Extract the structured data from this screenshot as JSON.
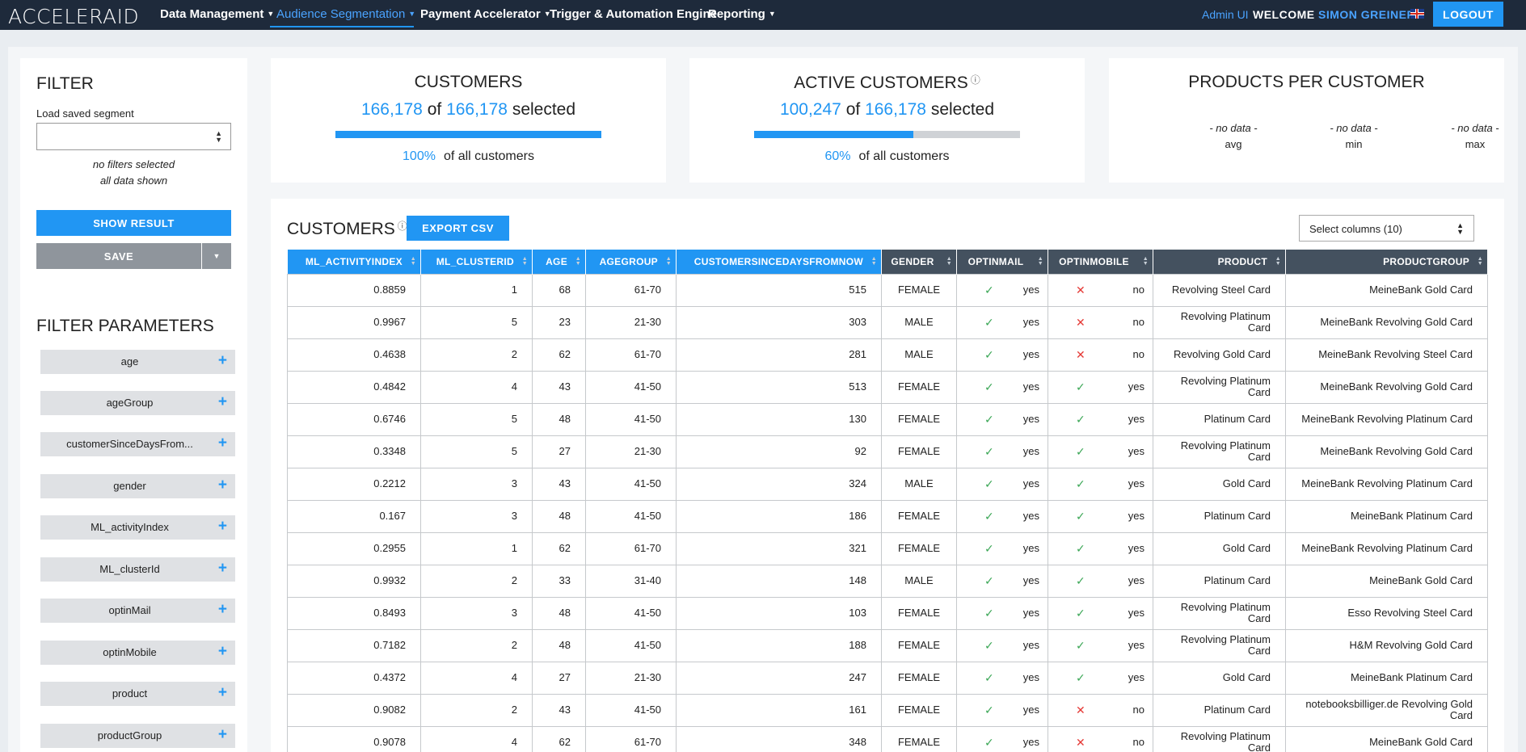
{
  "nav": {
    "logo": "ACCELERAID",
    "items": [
      {
        "label": "Data Management",
        "caret": true,
        "active": false
      },
      {
        "label": "Audience Segmentation",
        "caret": true,
        "active": true
      },
      {
        "label": "Payment Accelerator",
        "caret": true,
        "active": false
      },
      {
        "label": "Trigger & Automation Engine",
        "caret": false,
        "active": false
      },
      {
        "label": "Reporting",
        "caret": true,
        "active": false
      }
    ],
    "admin": "Admin UI",
    "welcome": "WELCOME",
    "user": "SIMON GREINER",
    "logout": "LOGOUT"
  },
  "filter": {
    "title": "FILTER",
    "saved_label": "Load saved segment",
    "saved_value": "",
    "note1": "no filters selected",
    "note2": "all data shown",
    "show_result": "SHOW RESULT",
    "save": "SAVE",
    "params_title": "FILTER PARAMETERS",
    "params": [
      "age",
      "ageGroup",
      "customerSinceDaysFrom...",
      "gender",
      "ML_activityIndex",
      "ML_clusterId",
      "optinMail",
      "optinMobile",
      "product",
      "productGroup"
    ]
  },
  "customers_card": {
    "title": "CUSTOMERS",
    "selected": "166,178",
    "of": "of",
    "total": "166,178",
    "selected_word": "selected",
    "percent": 100,
    "percent_label": "100%",
    "pct_text": "of all customers"
  },
  "active_card": {
    "title": "ACTIVE CUSTOMERS",
    "selected": "100,247",
    "of": "of",
    "total": "166,178",
    "selected_word": "selected",
    "percent": 60,
    "percent_label": "60%",
    "pct_text": "of all customers"
  },
  "ppc_card": {
    "title": "PRODUCTS PER CUSTOMER",
    "stats": [
      {
        "value": "- no data -",
        "label": "avg"
      },
      {
        "value": "- no data -",
        "label": "min"
      },
      {
        "value": "- no data -",
        "label": "max"
      }
    ]
  },
  "table_card": {
    "title": "CUSTOMERS",
    "export": "EXPORT CSV",
    "columns_select": "Select columns (10)",
    "headers": [
      "ML_ACTIVITYINDEX",
      "ML_CLUSTERID",
      "AGE",
      "AGEGROUP",
      "CUSTOMERSINCEDAYSFROMNOW",
      "GENDER",
      "OPTINMAIL",
      "OPTINMOBILE",
      "PRODUCT",
      "PRODUCTGROUP"
    ],
    "rows": [
      [
        "0.8859",
        "1",
        "68",
        "61-70",
        "515",
        "FEMALE",
        "yes",
        "no",
        "Revolving Steel Card",
        "MeineBank Gold Card"
      ],
      [
        "0.9967",
        "5",
        "23",
        "21-30",
        "303",
        "MALE",
        "yes",
        "no",
        "Revolving Platinum Card",
        "MeineBank Revolving Gold Card"
      ],
      [
        "0.4638",
        "2",
        "62",
        "61-70",
        "281",
        "MALE",
        "yes",
        "no",
        "Revolving Gold Card",
        "MeineBank Revolving Steel Card"
      ],
      [
        "0.4842",
        "4",
        "43",
        "41-50",
        "513",
        "FEMALE",
        "yes",
        "yes",
        "Revolving Platinum Card",
        "MeineBank Revolving Gold Card"
      ],
      [
        "0.6746",
        "5",
        "48",
        "41-50",
        "130",
        "FEMALE",
        "yes",
        "yes",
        "Platinum Card",
        "MeineBank Revolving Platinum Card"
      ],
      [
        "0.3348",
        "5",
        "27",
        "21-30",
        "92",
        "FEMALE",
        "yes",
        "yes",
        "Revolving Platinum Card",
        "MeineBank Revolving Gold Card"
      ],
      [
        "0.2212",
        "3",
        "43",
        "41-50",
        "324",
        "MALE",
        "yes",
        "yes",
        "Gold Card",
        "MeineBank Revolving Platinum Card"
      ],
      [
        "0.167",
        "3",
        "48",
        "41-50",
        "186",
        "FEMALE",
        "yes",
        "yes",
        "Platinum Card",
        "MeineBank Platinum Card"
      ],
      [
        "0.2955",
        "1",
        "62",
        "61-70",
        "321",
        "FEMALE",
        "yes",
        "yes",
        "Gold Card",
        "MeineBank Revolving Platinum Card"
      ],
      [
        "0.9932",
        "2",
        "33",
        "31-40",
        "148",
        "MALE",
        "yes",
        "yes",
        "Platinum Card",
        "MeineBank Gold Card"
      ],
      [
        "0.8493",
        "3",
        "48",
        "41-50",
        "103",
        "FEMALE",
        "yes",
        "yes",
        "Revolving Platinum Card",
        "Esso Revolving Steel Card"
      ],
      [
        "0.7182",
        "2",
        "48",
        "41-50",
        "188",
        "FEMALE",
        "yes",
        "yes",
        "Revolving Platinum Card",
        "H&M Revolving Gold Card"
      ],
      [
        "0.4372",
        "4",
        "27",
        "21-30",
        "247",
        "FEMALE",
        "yes",
        "yes",
        "Gold Card",
        "MeineBank Platinum Card"
      ],
      [
        "0.9082",
        "2",
        "43",
        "41-50",
        "161",
        "FEMALE",
        "yes",
        "no",
        "Platinum Card",
        "notebooksbilliger.de Revolving Gold Card"
      ],
      [
        "0.9078",
        "4",
        "62",
        "61-70",
        "348",
        "FEMALE",
        "yes",
        "no",
        "Revolving Platinum Card",
        "MeineBank Gold Card"
      ]
    ]
  },
  "colors": {
    "accent": "#2196f3",
    "nav_bg": "#1e2a3b",
    "header_dark": "#44515f",
    "check": "#3aa655",
    "cross": "#e53935"
  }
}
